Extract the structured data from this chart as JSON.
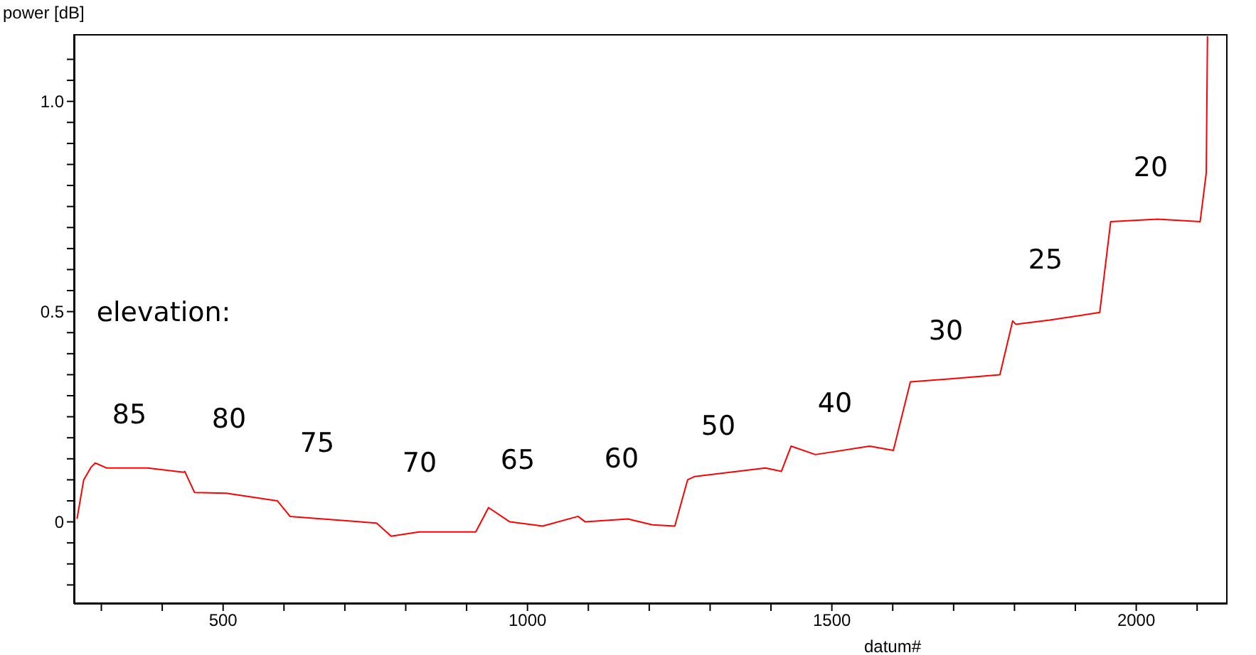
{
  "chart_data": {
    "type": "line",
    "xlabel": "datum#",
    "ylabel": "power [dB]",
    "x": [
      260,
      271,
      283,
      290,
      309,
      376,
      435,
      437,
      453,
      505,
      589,
      610,
      752,
      776,
      822,
      915,
      936,
      971,
      1025,
      1083,
      1095,
      1165,
      1205,
      1242,
      1263,
      1275,
      1345,
      1391,
      1417,
      1433,
      1473,
      1562,
      1601,
      1629,
      1695,
      1776,
      1797,
      1802,
      1858,
      1940,
      1958,
      2035,
      2105,
      2115,
      2117
    ],
    "series": [
      {
        "color": "#ff0000",
        "values": [
          0.007,
          0.1,
          0.13,
          0.14,
          0.128,
          0.128,
          0.118,
          0.12,
          0.07,
          0.068,
          0.05,
          0.013,
          -0.003,
          -0.034,
          -0.024,
          -0.024,
          0.034,
          0,
          -0.01,
          0.013,
          0,
          0.007,
          -0.007,
          -0.01,
          0.1,
          0.108,
          0.12,
          0.128,
          0.12,
          0.18,
          0.16,
          0.18,
          0.17,
          0.333,
          0.34,
          0.35,
          0.478,
          0.47,
          0.48,
          0.498,
          0.714,
          0.72,
          0.714,
          0.83,
          1.155
        ]
      }
    ],
    "xlim": [
      255,
      2150
    ],
    "xticks": [
      {
        "value": 300,
        "label": null
      },
      {
        "value": 400,
        "label": null
      },
      500,
      {
        "value": 600,
        "label": null
      },
      {
        "value": 700,
        "label": null
      },
      {
        "value": 800,
        "label": null
      },
      {
        "value": 900,
        "label": null
      },
      1000,
      {
        "value": 1100,
        "label": null
      },
      {
        "value": 1200,
        "label": null
      },
      {
        "value": 1300,
        "label": null
      },
      {
        "value": 1400,
        "label": null
      },
      1500,
      {
        "value": 1600,
        "label": null
      },
      {
        "value": 1700,
        "label": null
      },
      {
        "value": 1800,
        "label": null
      },
      {
        "value": 1900,
        "label": null
      },
      2000,
      {
        "value": 2100,
        "label": null
      }
    ],
    "ylim": [
      -0.195,
      1.16
    ],
    "yticks": [
      {
        "value": -0.15,
        "label": null
      },
      {
        "value": -0.1,
        "label": null
      },
      {
        "value": -0.05,
        "label": null
      },
      0,
      {
        "value": 0.05,
        "label": null
      },
      {
        "value": 0.1,
        "label": null
      },
      {
        "value": 0.15,
        "label": null
      },
      {
        "value": 0.2,
        "label": null
      },
      {
        "value": 0.25,
        "label": null
      },
      {
        "value": 0.3,
        "label": null
      },
      {
        "value": 0.35,
        "label": null
      },
      {
        "value": 0.4,
        "label": null
      },
      {
        "value": 0.45,
        "label": null
      },
      0.5,
      {
        "value": 0.55,
        "label": null
      },
      {
        "value": 0.6,
        "label": null
      },
      {
        "value": 0.65,
        "label": null
      },
      {
        "value": 0.7,
        "label": null
      },
      {
        "value": 0.75,
        "label": null
      },
      {
        "value": 0.8,
        "label": null
      },
      {
        "value": 0.85,
        "label": null
      },
      {
        "value": 0.9,
        "label": null
      },
      {
        "value": 0.95,
        "label": null
      },
      {
        "value": 1,
        "label": "1.0"
      },
      {
        "value": 1.05,
        "label": null
      },
      {
        "value": 1.1,
        "label": null
      }
    ],
    "grid": false,
    "legend": false,
    "marker": "none",
    "line_style": "solid",
    "annotations": [
      "elevation:",
      "85",
      "80",
      "75",
      "70",
      "65",
      "60",
      "50",
      "40",
      "30",
      "25",
      "20"
    ]
  }
}
